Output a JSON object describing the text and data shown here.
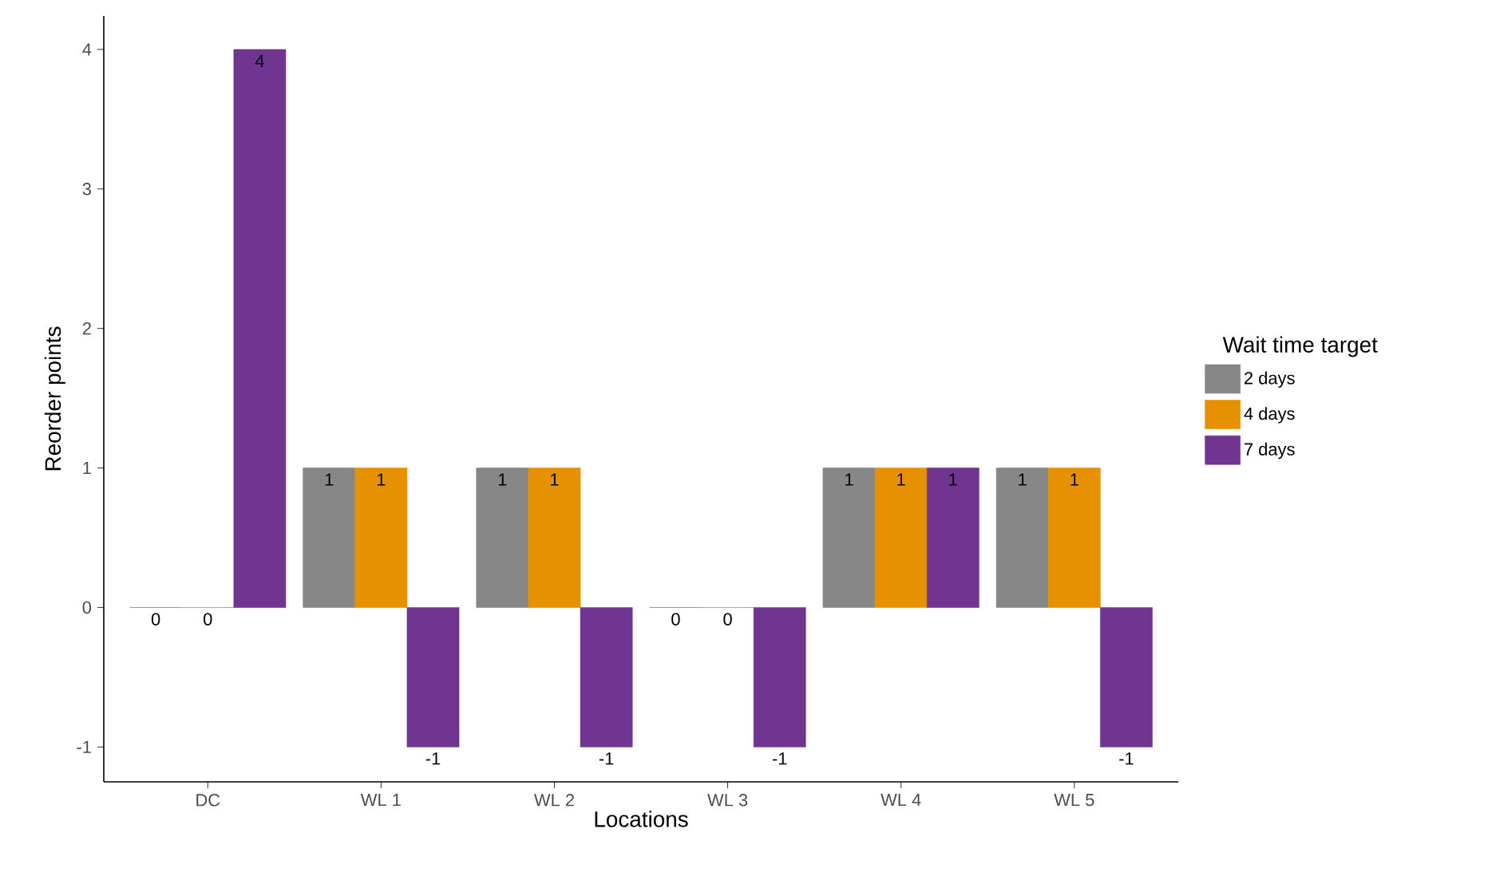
{
  "chart_data": {
    "type": "bar",
    "xlabel": "Locations",
    "ylabel": "Reorder points",
    "legend_title": "Wait time target",
    "categories": [
      "DC",
      "WL 1",
      "WL 2",
      "WL 3",
      "WL 4",
      "WL 5"
    ],
    "series": [
      {
        "name": "2 days",
        "color": "#878787",
        "values": [
          0,
          1,
          1,
          0,
          1,
          1
        ]
      },
      {
        "name": "4 days",
        "color": "#e69100",
        "values": [
          0,
          1,
          1,
          0,
          1,
          1
        ]
      },
      {
        "name": "7 days",
        "color": "#6f3591",
        "values": [
          4,
          -1,
          -1,
          -1,
          1,
          -1
        ]
      }
    ],
    "ylim": [
      -1.25,
      4.24
    ],
    "yticks": [
      -1,
      0,
      1,
      2,
      3,
      4
    ],
    "data_labels": true,
    "grid": false,
    "legend": "right"
  }
}
